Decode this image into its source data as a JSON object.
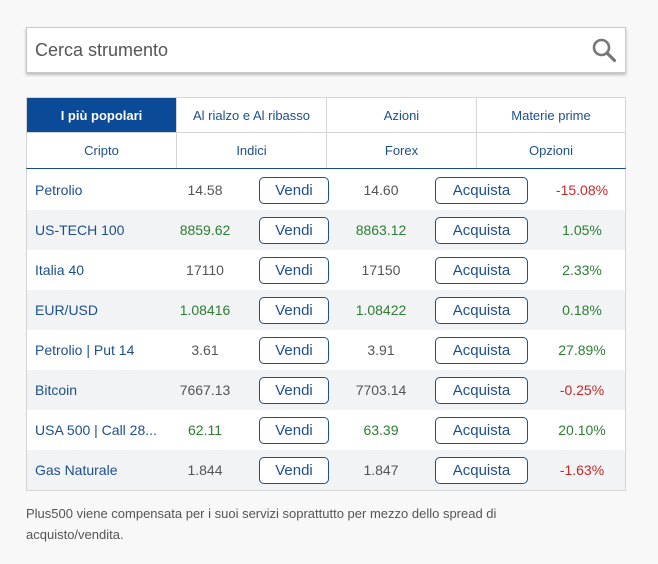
{
  "search": {
    "placeholder": "Cerca strumento",
    "icon": "search-icon"
  },
  "tabs": [
    {
      "label": "I più popolari",
      "active": true
    },
    {
      "label": "Al rialzo e Al ribasso",
      "active": false
    },
    {
      "label": "Azioni",
      "active": false
    },
    {
      "label": "Materie prime",
      "active": false
    },
    {
      "label": "Cripto",
      "active": false
    },
    {
      "label": "Indici",
      "active": false
    },
    {
      "label": "Forex",
      "active": false
    },
    {
      "label": "Opzioni",
      "active": false
    }
  ],
  "buttons": {
    "sell": "Vendi",
    "buy": "Acquista"
  },
  "rows": [
    {
      "name": "Petrolio",
      "sell": "14.58",
      "buy": "14.60",
      "change": "-15.08%",
      "trend": "neg",
      "price_trend": "neu"
    },
    {
      "name": "US-TECH 100",
      "sell": "8859.62",
      "buy": "8863.12",
      "change": "1.05%",
      "trend": "pos",
      "price_trend": "pos"
    },
    {
      "name": "Italia 40",
      "sell": "17110",
      "buy": "17150",
      "change": "2.33%",
      "trend": "pos",
      "price_trend": "neu"
    },
    {
      "name": "EUR/USD",
      "sell": "1.08416",
      "buy": "1.08422",
      "change": "0.18%",
      "trend": "pos",
      "price_trend": "pos"
    },
    {
      "name": "Petrolio | Put 14",
      "sell": "3.61",
      "buy": "3.91",
      "change": "27.89%",
      "trend": "pos",
      "price_trend": "neu"
    },
    {
      "name": "Bitcoin",
      "sell": "7667.13",
      "buy": "7703.14",
      "change": "-0.25%",
      "trend": "neg",
      "price_trend": "neu"
    },
    {
      "name": "USA 500 | Call 28...",
      "sell": "62.11",
      "buy": "63.39",
      "change": "20.10%",
      "trend": "pos",
      "price_trend": "pos"
    },
    {
      "name": "Gas Naturale",
      "sell": "1.844",
      "buy": "1.847",
      "change": "-1.63%",
      "trend": "neg",
      "price_trend": "neu"
    }
  ],
  "footer": {
    "note": "Plus500 viene compensata per i suoi servizi soprattutto per mezzo dello spread di acquisto/vendita."
  },
  "colors": {
    "accent": "#0b4a97",
    "positive": "#2e7d32",
    "negative": "#c62828"
  }
}
